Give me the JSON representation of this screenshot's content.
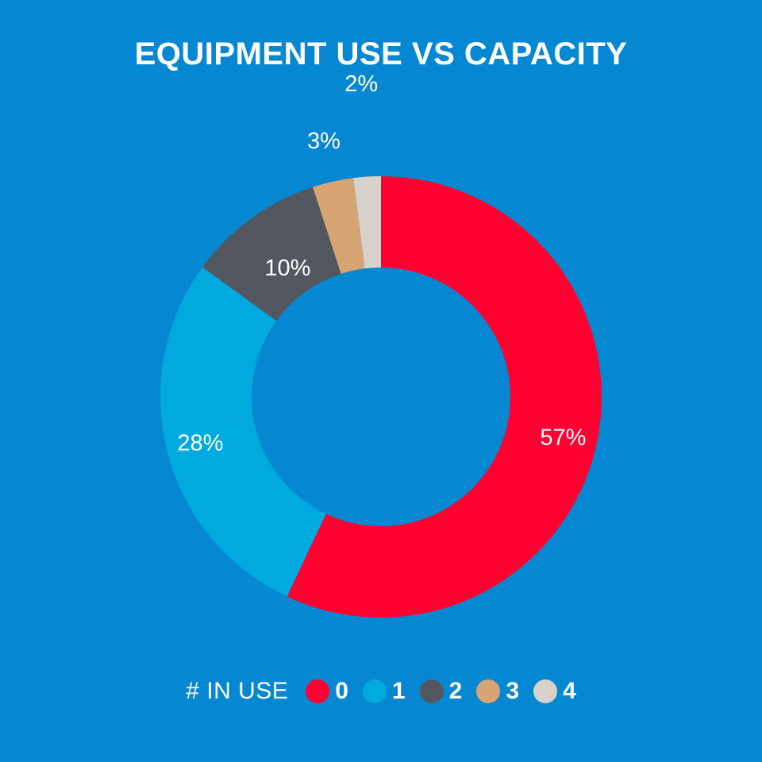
{
  "colors": {
    "background": "#0588d1"
  },
  "chart_data": {
    "type": "pie",
    "variant": "donut",
    "title": "EQUIPMENT USE VS CAPACITY",
    "categories": [
      "0",
      "1",
      "2",
      "3",
      "4"
    ],
    "values": [
      57,
      28,
      10,
      3,
      2
    ],
    "labels": [
      "57%",
      "28%",
      "10%",
      "3%",
      "2%"
    ],
    "colors": [
      "#ff0030",
      "#00aadf",
      "#525760",
      "#d6a571",
      "#d8d2cd"
    ],
    "legend": {
      "title": "# IN USE",
      "placement": "bottom"
    }
  }
}
